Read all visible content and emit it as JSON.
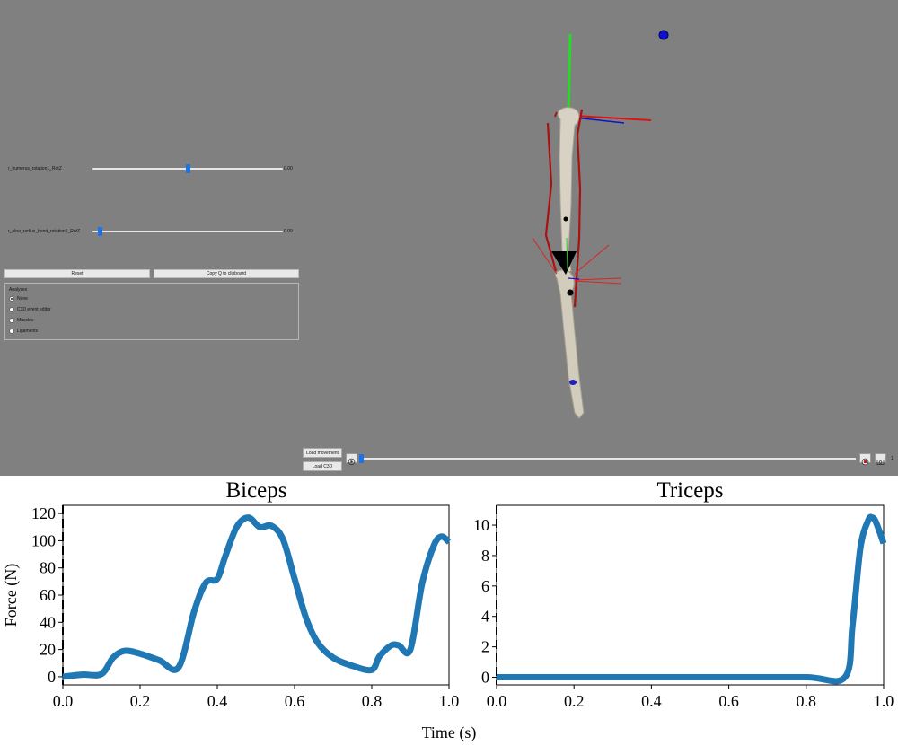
{
  "viewer": {
    "sliders": [
      {
        "label": "r_humerus_rotation1_RotZ",
        "value": "0.00",
        "position": 0.5
      },
      {
        "label": "r_ulna_radius_hand_rotation1_RotZ",
        "value": "0.09",
        "position": 0.03
      }
    ],
    "reset_label": "Reset",
    "copy_label": "Copy Q to clipboard",
    "analyses": {
      "title": "Analyses",
      "options": [
        "None",
        "C3D event editor",
        "Muscles",
        "Ligaments"
      ],
      "selected": "None"
    },
    "load_movement_label": "Load movement",
    "load_c3d_label": "Load C3D",
    "frame_label": "1",
    "timeline_position": 0.0,
    "icons": [
      "play-icon",
      "record-icon",
      "snapshot-icon"
    ]
  },
  "chart_data": [
    {
      "type": "line",
      "title": "Biceps",
      "xlabel": "Time (s)",
      "ylabel": "Force (N)",
      "xlim": [
        0,
        1
      ],
      "ylim": [
        -6,
        126
      ],
      "xticks": [
        "0.0",
        "0.2",
        "0.4",
        "0.6",
        "0.8",
        "1.0"
      ],
      "yticks": [
        "0",
        "20",
        "40",
        "60",
        "80",
        "100",
        "120"
      ],
      "color": "#1f77b4",
      "x": [
        0,
        0.05,
        0.1,
        0.13,
        0.16,
        0.2,
        0.25,
        0.3,
        0.34,
        0.37,
        0.4,
        0.42,
        0.45,
        0.48,
        0.51,
        0.54,
        0.57,
        0.6,
        0.63,
        0.66,
        0.7,
        0.75,
        0.8,
        0.82,
        0.85,
        0.87,
        0.9,
        0.93,
        0.96,
        0.98,
        1.0
      ],
      "y": [
        0,
        1.5,
        2,
        14,
        19,
        17,
        12,
        7,
        48,
        69,
        72,
        88,
        110,
        117,
        110,
        111,
        101,
        72,
        43,
        25,
        14,
        8,
        5,
        15,
        23,
        23,
        20,
        68,
        96,
        103,
        99
      ]
    },
    {
      "type": "line",
      "title": "Triceps",
      "xlabel": "",
      "ylabel": "",
      "xlim": [
        0,
        1
      ],
      "ylim": [
        -0.5,
        11.3
      ],
      "xticks": [
        "0.0",
        "0.2",
        "0.4",
        "0.6",
        "0.8",
        "1.0"
      ],
      "yticks": [
        "0",
        "2",
        "4",
        "6",
        "8",
        "10"
      ],
      "color": "#1f77b4",
      "x": [
        0,
        0.2,
        0.4,
        0.6,
        0.8,
        0.9,
        0.92,
        0.94,
        0.96,
        0.97,
        0.98,
        1.0
      ],
      "y": [
        0,
        0,
        0,
        0,
        0,
        0,
        3.5,
        8.5,
        10.3,
        10.5,
        10.2,
        8.8
      ]
    }
  ]
}
